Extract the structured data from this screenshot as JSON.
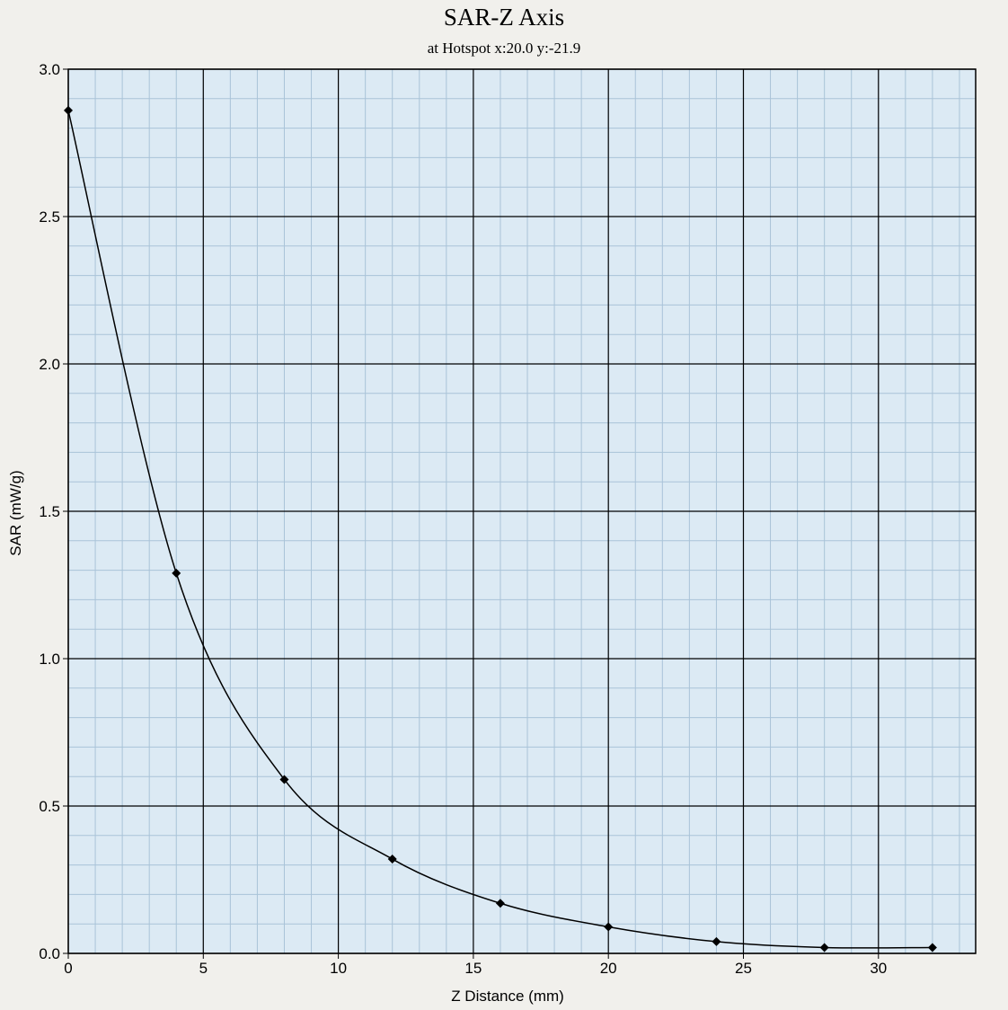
{
  "chart_data": {
    "type": "line",
    "title": "SAR-Z Axis",
    "subtitle": "at Hotspot x:20.0 y:-21.9",
    "xlabel": "Z Distance (mm)",
    "ylabel": "SAR (mW/g)",
    "xlim": [
      0,
      33.6
    ],
    "ylim": [
      0,
      3.0
    ],
    "xticks": [
      0,
      5,
      10,
      15,
      20,
      25,
      30
    ],
    "yticks": [
      0.0,
      0.5,
      1.0,
      1.5,
      2.0,
      2.5,
      3.0
    ],
    "xtick_labels": [
      "0",
      "5",
      "10",
      "15",
      "20",
      "25",
      "30"
    ],
    "ytick_labels": [
      "0.0",
      "0.5",
      "1.0",
      "1.5",
      "2.0",
      "2.5",
      "3.0"
    ],
    "grid": true,
    "series": [
      {
        "x": [
          0,
          4,
          8,
          12,
          16,
          20,
          24,
          28,
          32
        ],
        "values": [
          2.86,
          1.29,
          0.59,
          0.32,
          0.17,
          0.09,
          0.04,
          0.02,
          0.02
        ]
      }
    ],
    "colors": {
      "plot_background": "#dceaf4",
      "major_grid": "#000000",
      "minor_grid": "#a9c3d8",
      "line": "#000000",
      "marker": "#000000",
      "page_background": "#f1f0ec"
    }
  }
}
